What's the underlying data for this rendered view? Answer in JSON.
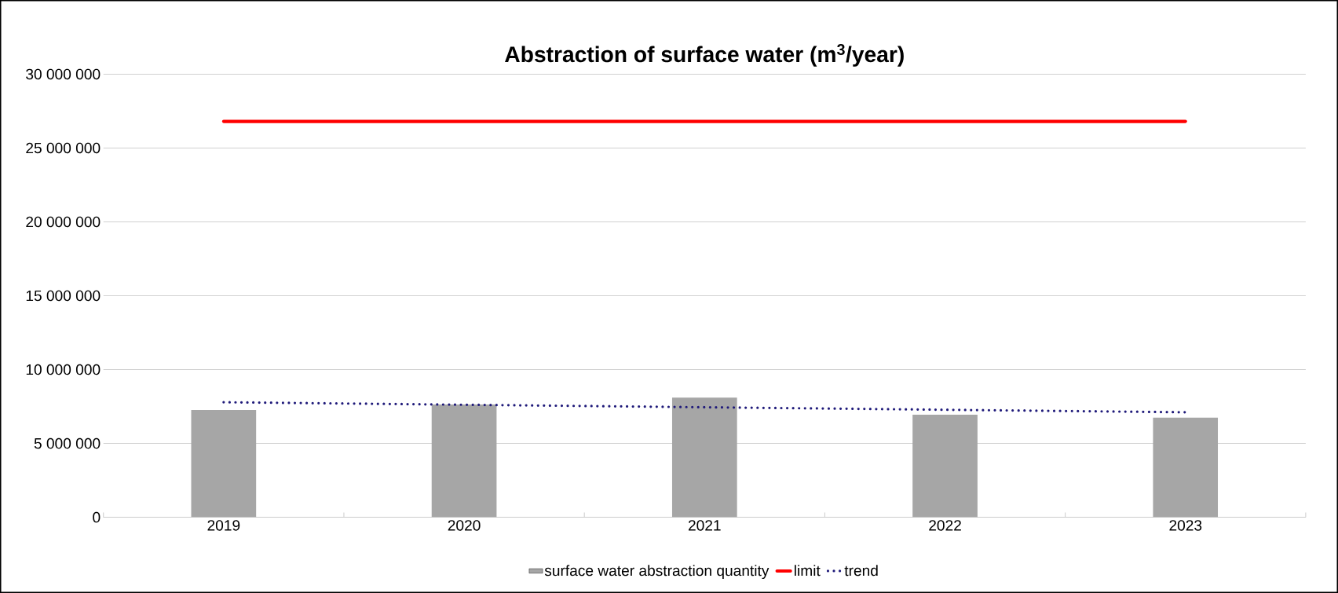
{
  "chart_data": {
    "type": "bar",
    "title": "Abstraction of surface water (m$^{3}$/year)",
    "categories": [
      "2019",
      "2020",
      "2021",
      "2022",
      "2023"
    ],
    "series": [
      {
        "name": "surface water abstraction quantity",
        "color": "#a6a6a6",
        "values": [
          7260000,
          7630000,
          8100000,
          6950000,
          6740000
        ]
      },
      {
        "name": "limit",
        "type": "line",
        "color": "#ff0000",
        "line_style": "solid",
        "values": [
          26800000,
          26800000,
          26800000,
          26800000,
          26800000
        ]
      },
      {
        "name": "trend",
        "type": "line",
        "color": "#1f1a7a",
        "line_style": "dotted",
        "values": [
          7790000,
          7620000,
          7450000,
          7280000,
          7110000
        ]
      }
    ],
    "ylim": [
      0,
      30000000
    ],
    "yticks": [
      {
        "value": 0,
        "label": "0"
      },
      {
        "value": 5000000,
        "label": "5 000 000"
      },
      {
        "value": 10000000,
        "label": "10 000 000"
      },
      {
        "value": 15000000,
        "label": "15 000 000"
      },
      {
        "value": 20000000,
        "label": "20 000 000"
      },
      {
        "value": 25000000,
        "label": "25 000 000"
      },
      {
        "value": 30000000,
        "label": "30 000 000"
      }
    ],
    "grid": "y",
    "legend": "bottom"
  }
}
